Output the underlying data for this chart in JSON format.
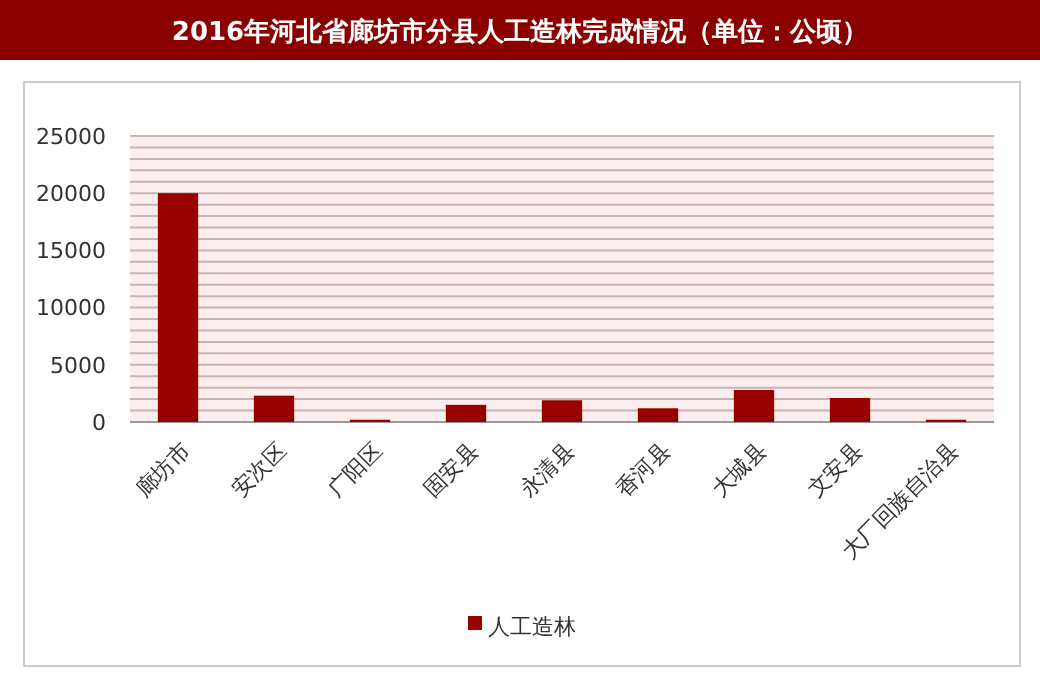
{
  "chart_data": {
    "type": "bar",
    "title": "2016年河北省廊坊市分县人工造林完成情况（单位：公顷）",
    "categories": [
      "廊坊市",
      "安次区",
      "广阳区",
      "固安县",
      "永清县",
      "香河县",
      "大城县",
      "文安县",
      "大厂回族自治县"
    ],
    "series": [
      {
        "name": "人工造林",
        "color": "#990000",
        "values": [
          20000,
          2300,
          200,
          1500,
          1900,
          1200,
          2800,
          2100,
          200
        ]
      }
    ],
    "ylim": [
      0,
      25000
    ],
    "yticks": [
      0,
      {
        "value": 1000,
        "label": null
      },
      {
        "value": 2000,
        "label": null
      },
      {
        "value": 3000,
        "label": null
      },
      {
        "value": 4000,
        "label": null
      },
      5000,
      {
        "value": 6000,
        "label": null
      },
      {
        "value": 7000,
        "label": null
      },
      {
        "value": 8000,
        "label": null
      },
      {
        "value": 9000,
        "label": null
      },
      10000,
      {
        "value": 11000,
        "label": null
      },
      {
        "value": 12000,
        "label": null
      },
      {
        "value": 13000,
        "label": null
      },
      {
        "value": 14000,
        "label": null
      },
      15000,
      {
        "value": 16000,
        "label": null
      },
      {
        "value": 17000,
        "label": null
      },
      {
        "value": 18000,
        "label": null
      },
      {
        "value": 19000,
        "label": null
      },
      20000,
      {
        "value": 21000,
        "label": null
      },
      {
        "value": 22000,
        "label": null
      },
      {
        "value": 23000,
        "label": null
      },
      {
        "value": 24000,
        "label": null
      },
      25000
    ],
    "grid": "y",
    "legend": "bottom"
  }
}
